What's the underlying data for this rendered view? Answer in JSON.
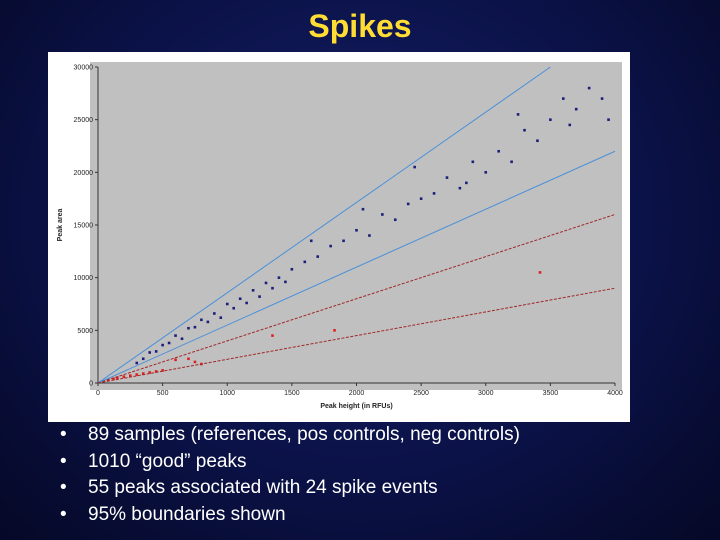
{
  "title": "Spikes",
  "chart_data": {
    "type": "scatter",
    "x_label": "Peak height (in RFUs)",
    "y_label": "Peak area",
    "xlim": [
      0,
      4000
    ],
    "ylim": [
      0,
      30000
    ],
    "xticks": [
      0,
      500,
      1000,
      1500,
      2000,
      2500,
      3000,
      3500,
      4000
    ],
    "yticks": [
      0,
      5000,
      10000,
      15000,
      20000,
      25000,
      30000
    ],
    "series": [
      {
        "type": "scatter",
        "color": "#1c1f7a",
        "x": [
          300,
          350,
          400,
          450,
          500,
          550,
          600,
          650,
          700,
          750,
          800,
          850,
          900,
          950,
          1000,
          1050,
          1100,
          1150,
          1200,
          1250,
          1300,
          1350,
          1400,
          1450,
          1500,
          1600,
          1700,
          1800,
          1900,
          2000,
          2100,
          2200,
          2300,
          2400,
          2500,
          2600,
          2700,
          2800,
          2900,
          3000,
          3100,
          3200,
          3300,
          3400,
          3500,
          3600,
          3700,
          3800,
          3900,
          3950,
          1650,
          2050,
          2450,
          2850,
          3250,
          3650
        ],
        "values": [
          1900,
          2300,
          2900,
          3000,
          3600,
          3800,
          4500,
          4200,
          5200,
          5300,
          6000,
          5800,
          6600,
          6200,
          7500,
          7100,
          8000,
          7600,
          8800,
          8200,
          9500,
          9000,
          10000,
          9600,
          10800,
          11500,
          12000,
          13000,
          13500,
          14500,
          14000,
          16000,
          15500,
          17000,
          17500,
          18000,
          19500,
          18500,
          21000,
          20000,
          22000,
          21000,
          24000,
          23000,
          25000,
          27000,
          26000,
          28000,
          27000,
          25000,
          13500,
          16500,
          20500,
          19000,
          25500,
          24500
        ]
      },
      {
        "type": "scatter",
        "color": "#e02020",
        "x": [
          80,
          120,
          150,
          200,
          250,
          300,
          350,
          400,
          450,
          500,
          600,
          700,
          750,
          800,
          1350,
          1830,
          3420
        ],
        "values": [
          300,
          400,
          500,
          600,
          700,
          800,
          900,
          1000,
          1100,
          1200,
          2200,
          2300,
          2000,
          1800,
          4500,
          5000,
          10500
        ]
      },
      {
        "type": "line",
        "color": "#4a90d9",
        "x": [
          0,
          3500
        ],
        "values": [
          0,
          30000
        ]
      },
      {
        "type": "line",
        "color": "#4a90d9",
        "x": [
          0,
          4000
        ],
        "values": [
          0,
          22000
        ]
      },
      {
        "type": "line",
        "color": "#a02828",
        "dash": true,
        "x": [
          0,
          4000
        ],
        "values": [
          0,
          16000
        ]
      },
      {
        "type": "line",
        "color": "#a02828",
        "dash": true,
        "x": [
          0,
          4000
        ],
        "values": [
          0,
          9000
        ]
      }
    ]
  },
  "bullets": [
    "89 samples (references, pos controls, neg controls)",
    "1010 “good” peaks",
    "55 peaks associated with 24 spike events",
    "95% boundaries shown"
  ]
}
